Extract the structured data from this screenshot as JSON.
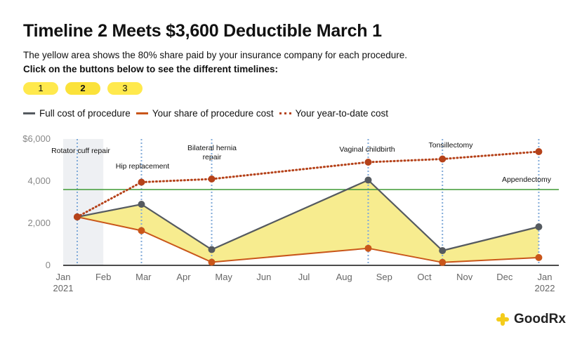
{
  "title": "Timeline 2 Meets $3,600 Deductible March 1",
  "subtitle": "The yellow area shows the 80% share paid by your insurance company for each procedure.",
  "instruction": "Click on the buttons below to see the different timelines:",
  "timeline_buttons": [
    {
      "label": "1",
      "active": false
    },
    {
      "label": "2",
      "active": true
    },
    {
      "label": "3",
      "active": false
    }
  ],
  "legend": [
    {
      "label": "Full cost of procedure",
      "color": "#555a60",
      "style": "solid"
    },
    {
      "label": "Your share of procedure cost",
      "color": "#c9561a",
      "style": "solid"
    },
    {
      "label": "Your year-to-date cost",
      "color": "#b5421a",
      "style": "dotted"
    }
  ],
  "colors": {
    "full_cost": "#555a60",
    "your_share": "#c9561a",
    "ytd": "#b5421a",
    "insurance_fill": "#f7ec8f",
    "deductible_line": "#3f9a35",
    "marker_line": "#7fa9d8",
    "shade": "#eef0f3",
    "brand": "#f4cc1b"
  },
  "chart_data": {
    "type": "line",
    "y_ticks": [
      "$6,000",
      "4,000",
      "2,000",
      "0"
    ],
    "y_tick_values": [
      6000,
      4000,
      2000,
      0
    ],
    "ylim": [
      0,
      6000
    ],
    "x_ticks": [
      {
        "label": "Jan",
        "sublabel": "2021",
        "month": 0
      },
      {
        "label": "Feb",
        "sublabel": "",
        "month": 1
      },
      {
        "label": "Mar",
        "sublabel": "",
        "month": 2
      },
      {
        "label": "Apr",
        "sublabel": "",
        "month": 3
      },
      {
        "label": "May",
        "sublabel": "",
        "month": 4
      },
      {
        "label": "Jun",
        "sublabel": "",
        "month": 5
      },
      {
        "label": "Jul",
        "sublabel": "",
        "month": 6
      },
      {
        "label": "Aug",
        "sublabel": "",
        "month": 7
      },
      {
        "label": "Sep",
        "sublabel": "",
        "month": 8
      },
      {
        "label": "Oct",
        "sublabel": "",
        "month": 9
      },
      {
        "label": "Nov",
        "sublabel": "",
        "month": 10
      },
      {
        "label": "Dec",
        "sublabel": "",
        "month": 11
      },
      {
        "label": "Jan",
        "sublabel": "2022",
        "month": 12
      }
    ],
    "deductible": 3600,
    "shaded_range": [
      0,
      1.0
    ],
    "procedures": [
      {
        "name": "Rotator cuff repair",
        "month": 0.35,
        "full_cost": 2300,
        "your_share": 2300,
        "ytd": 2300
      },
      {
        "name": "Hip replacement",
        "month": 1.95,
        "full_cost": 2900,
        "your_share": 1650,
        "ytd": 3950
      },
      {
        "name": "Bilateral hernia repair",
        "month": 3.7,
        "full_cost": 750,
        "your_share": 150,
        "ytd": 4100
      },
      {
        "name": "Vaginal childbirth",
        "month": 7.6,
        "full_cost": 4050,
        "your_share": 810,
        "ytd": 4900
      },
      {
        "name": "Tonsillectomy",
        "month": 9.45,
        "full_cost": 700,
        "your_share": 140,
        "ytd": 5050
      },
      {
        "name": "Appendectomy",
        "month": 11.85,
        "full_cost": 1830,
        "your_share": 370,
        "ytd": 5400
      }
    ]
  },
  "brand": {
    "name": "GoodRx"
  }
}
